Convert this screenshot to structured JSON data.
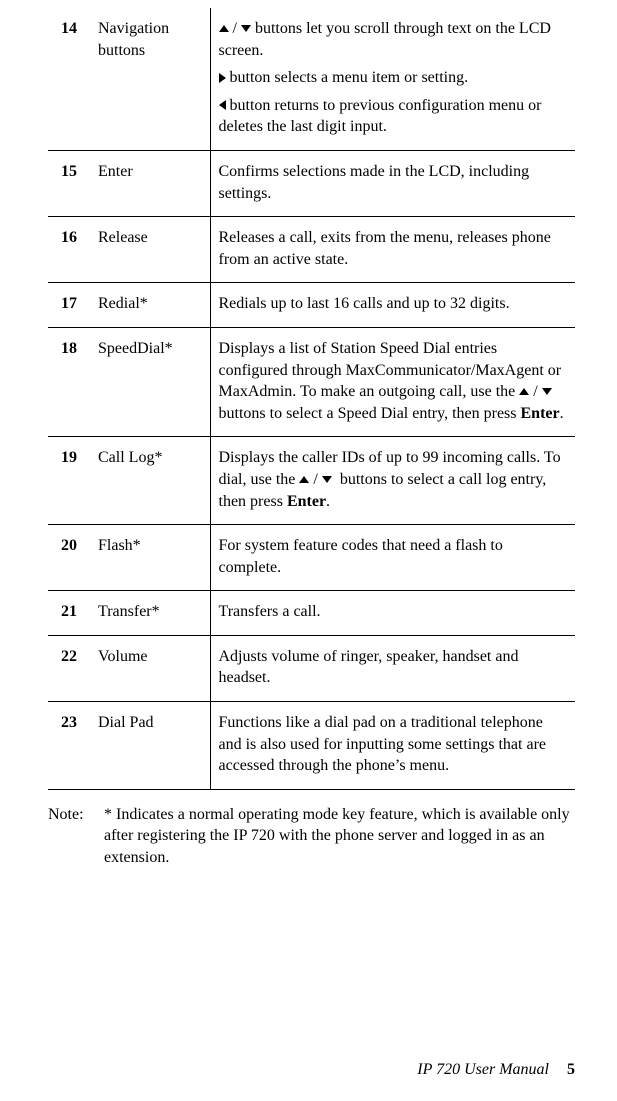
{
  "rows": [
    {
      "num": "14",
      "name": "Navigation buttons",
      "desc_html": "<div class='desc-block'><span class='arrow arrow-up' data-name='up-arrow-icon' data-interactable='false'></span> / <span class='arrow arrow-down' data-name='down-arrow-icon' data-interactable='false'></span> buttons let you scroll through text on the LCD screen.</div><div class='desc-block'><span class='arrow arrow-right' data-name='right-arrow-icon' data-interactable='false'></span> button selects a menu item or setting.</div><div class='desc-block'><span class='arrow arrow-left' data-name='left-arrow-icon' data-interactable='false'></span> button returns to previous configuration menu or deletes the last digit input.</div>"
    },
    {
      "num": "15",
      "name": "Enter",
      "desc_html": "Confirms selections made in the LCD, including settings."
    },
    {
      "num": "16",
      "name": "Release",
      "desc_html": "Releases a call, exits from the menu, releases phone from an active state."
    },
    {
      "num": "17",
      "name": "Redial*",
      "desc_html": "Redials up to last 16 calls and up to 32 digits."
    },
    {
      "num": "18",
      "name": "SpeedDial*",
      "desc_html": "Displays a list of Station Speed Dial entries configured through MaxCommunicator/MaxAgent or MaxAdmin. To make an outgoing call, use the <span class='arrow arrow-up' data-name='up-arrow-icon' data-interactable='false'></span> / <span class='arrow arrow-down' data-name='down-arrow-icon' data-interactable='false'></span>&nbsp; buttons to select a Speed Dial entry, then press <b>Enter</b>."
    },
    {
      "num": "19",
      "name": "Call Log*",
      "desc_html": "Displays the caller IDs of up to 99 incoming calls. To dial, use the <span class='arrow arrow-up' data-name='up-arrow-icon' data-interactable='false'></span> / <span class='arrow arrow-down' data-name='down-arrow-icon' data-interactable='false'></span>&nbsp; buttons to select a call log entry, then press <b>Enter</b>."
    },
    {
      "num": "20",
      "name": "Flash*",
      "desc_html": "For system feature codes that need a flash to complete."
    },
    {
      "num": "21",
      "name": "Transfer*",
      "desc_html": "Transfers a call."
    },
    {
      "num": "22",
      "name": "Volume",
      "desc_html": "Adjusts volume of ringer, speaker, handset and headset."
    },
    {
      "num": "23",
      "name": "Dial Pad",
      "desc_html": "Functions like a dial pad on a traditional telephone and is also used for inputting some settings that are accessed through the phone’s menu."
    }
  ],
  "note": {
    "label": "Note:",
    "body": "* Indicates a normal operating mode key feature, which is available only after registering the IP 720 with the phone server and logged in as an extension."
  },
  "footer": {
    "title": "IP 720 User Manual",
    "page": "5"
  }
}
